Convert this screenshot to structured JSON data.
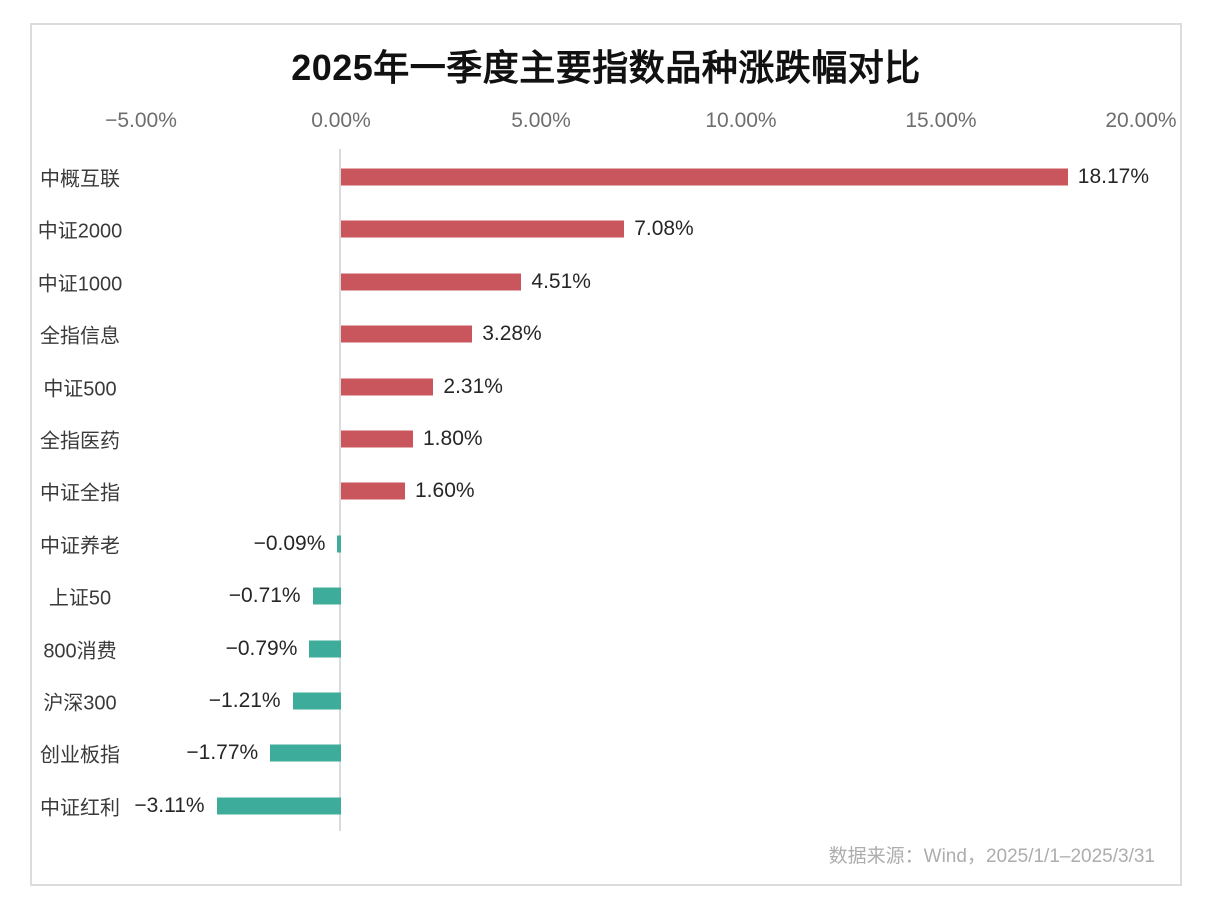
{
  "chart_data": {
    "type": "bar",
    "orientation": "horizontal",
    "title": "2025年一季度主要指数品种涨跌幅对比",
    "categories": [
      "中概互联",
      "中证2000",
      "中证1000",
      "全指信息",
      "中证500",
      "全指医药",
      "中证全指",
      "中证养老",
      "上证50",
      "800消费",
      "沪深300",
      "创业板指",
      "中证红利"
    ],
    "values": [
      18.17,
      7.08,
      4.51,
      3.28,
      2.31,
      1.8,
      1.6,
      -0.09,
      -0.71,
      -0.79,
      -1.21,
      -1.77,
      -3.11
    ],
    "value_labels": [
      "18.17%",
      "7.08%",
      "4.51%",
      "3.28%",
      "2.31%",
      "1.80%",
      "1.60%",
      "−0.09%",
      "−0.71%",
      "−0.79%",
      "−1.21%",
      "−1.77%",
      "−3.11%"
    ],
    "x_ticks": [
      {
        "label": "−5.00%",
        "value": -5
      },
      {
        "label": "0.00%",
        "value": 0
      },
      {
        "label": "5.00%",
        "value": 5
      },
      {
        "label": "10.00%",
        "value": 10
      },
      {
        "label": "15.00%",
        "value": 15
      },
      {
        "label": "20.00%",
        "value": 20
      }
    ],
    "xlim": [
      -5,
      20
    ],
    "grid": false,
    "legend": "none",
    "xlabel": "",
    "ylabel": "",
    "colors": {
      "positive_bar": "#C9565C",
      "negative_bar": "#3EAC9A",
      "axis_line": "#DBDBDB",
      "tick_text": "#6E6E6E",
      "value_text": "#262626",
      "category_text": "#3A3A3A",
      "card_border": "#DCDCDC"
    },
    "source_note": "数据来源：Wind，2025/1/1–2025/3/31"
  }
}
